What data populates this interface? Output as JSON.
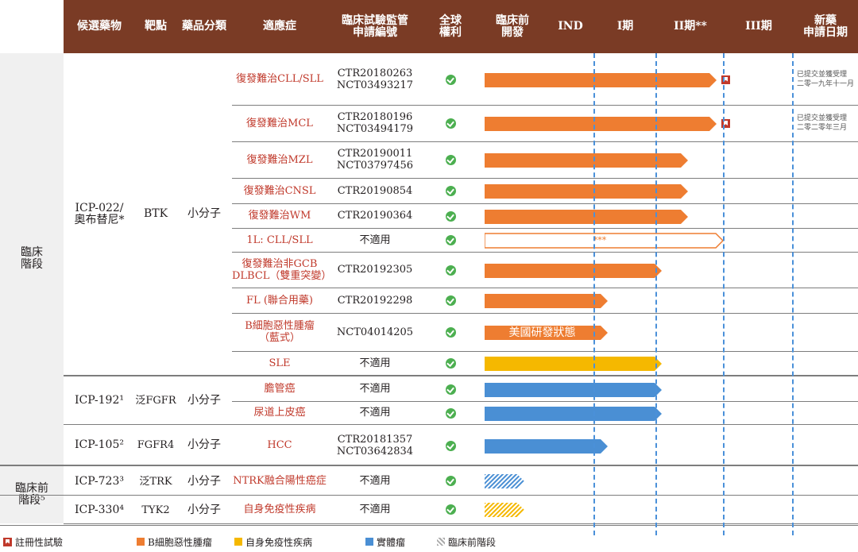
{
  "headers": [
    "候選藥物",
    "靶點",
    "藥品分類",
    "適應症",
    "臨床試驗監管\n申請編號",
    "全球\n權利",
    "臨床前\n開發",
    "IND",
    "I期",
    "II期**",
    "III期",
    "新藥\n申請日期"
  ],
  "stages": {
    "clinical": "臨床\n階段",
    "preclinical": "臨床前\n階段⁵"
  },
  "drugs": [
    {
      "name": "ICP-022/\n奧布替尼*",
      "target": "BTK",
      "class": "小分子"
    },
    {
      "name": "ICP-192¹",
      "target": "泛FGFR",
      "class": "小分子"
    },
    {
      "name": "ICP-105²",
      "target": "FGFR4",
      "class": "小分子"
    },
    {
      "name": "ICP-723³",
      "target": "泛TRK",
      "class": "小分子"
    },
    {
      "name": "ICP-330⁴",
      "target": "TYK2",
      "class": "小分子"
    }
  ],
  "rows": [
    {
      "indication": "復發難治CLL/SLL",
      "id": "CTR20180263\nNCT03493217",
      "color": "#ee7d31",
      "progress": "NDA",
      "nda": "已提交並獲受理\n二零一九年十一月"
    },
    {
      "indication": "復發難治MCL",
      "id": "CTR20180196\nNCT03494179",
      "color": "#ee7d31",
      "progress": "NDA",
      "nda": "已提交並獲受理\n二零二零年三月"
    },
    {
      "indication": "復發難治MZL",
      "id": "CTR20190011\nNCT03797456",
      "color": "#ee7d31",
      "progress": "Phase II"
    },
    {
      "indication": "復發難治CNSL",
      "id": "CTR20190854",
      "color": "#ee7d31",
      "progress": "Phase II"
    },
    {
      "indication": "復發難治WM",
      "id": "CTR20190364",
      "color": "#ee7d31",
      "progress": "Phase II"
    },
    {
      "indication": "1L: CLL/SLL",
      "id": "不適用",
      "color": "#ee7d31",
      "progress": "Phase III",
      "bar_label": "***"
    },
    {
      "indication": "復發難治非GCB\nDLBCL（雙重突變）",
      "id": "CTR20192305",
      "color": "#ee7d31",
      "progress": "Phase I/II"
    },
    {
      "indication": "FL (聯合用藥)",
      "id": "CTR20192298",
      "color": "#ee7d31",
      "progress": "Phase I"
    },
    {
      "indication": "B細胞惡性腫瘤\n（藍式）",
      "id": "NCT04014205",
      "color": "#ee7d31",
      "progress": "Phase I",
      "bar_label": "美國研發狀態"
    },
    {
      "indication": "SLE",
      "id": "不適用",
      "color": "#f5b800",
      "progress": "Phase I/II"
    },
    {
      "indication": "膽管癌",
      "id": "不適用",
      "color": "#4a8fd4",
      "progress": "Phase I/II"
    },
    {
      "indication": "尿道上皮癌",
      "id": "不適用",
      "color": "#4a8fd4",
      "progress": "Phase I/II"
    },
    {
      "indication": "HCC",
      "id": "CTR20181357\nNCT03642834",
      "color": "#4a8fd4",
      "progress": "Phase I"
    },
    {
      "indication": "NTRK融合陽性癌症",
      "id": "不適用",
      "color": "#4a8fd4",
      "progress": "Preclinical"
    },
    {
      "indication": "自身免疫性疾病",
      "id": "不適用",
      "color": "#f5b800",
      "progress": "Preclinical"
    }
  ],
  "legend": [
    {
      "label": "註冊性試驗",
      "color": "#c0392b",
      "icon": "flag-icon"
    },
    {
      "label": "B細胞惡性腫瘤",
      "color": "#ee7d31",
      "icon": "square-icon"
    },
    {
      "label": "自身免疫性疾病",
      "color": "#f5b800",
      "icon": "square-icon"
    },
    {
      "label": "實體瘤",
      "color": "#4a8fd4",
      "icon": "square-icon"
    },
    {
      "label": "臨床前階段",
      "color": "#aaaaaa",
      "icon": "hatch-icon"
    }
  ],
  "colors": {
    "header_bg": "#7a3b25",
    "indication_text": "#c0392b",
    "check": "#4caf50",
    "dashed_line": "#4a90d9"
  }
}
